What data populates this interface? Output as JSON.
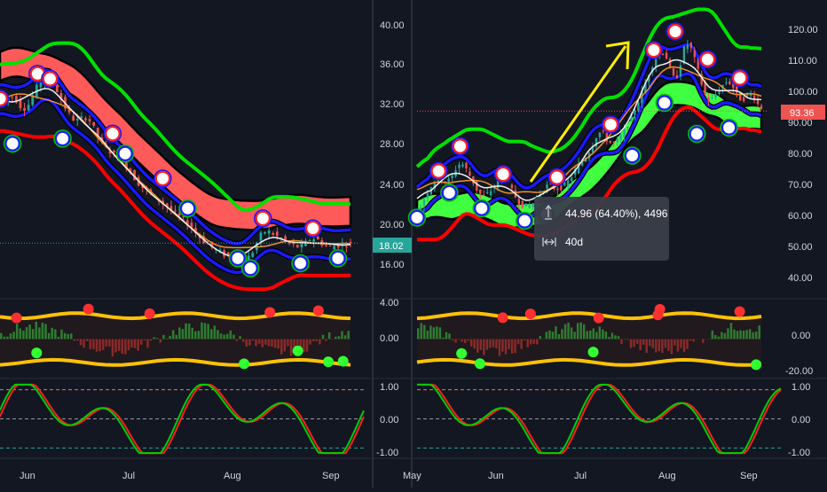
{
  "colors": {
    "background": "#131722",
    "divider": "#2a2e39",
    "axis_text": "#d1d4dc",
    "price_badge_left": "#26a69a",
    "price_badge_right": "#ef5350",
    "band_upper": "#00e000",
    "band_lower": "#ff0000",
    "channel": "#1a1aff",
    "cloud_bear": "#ff5a5a",
    "cloud_bull": "#40ff40",
    "ma_orange": "#f0902a",
    "ma_white": "#f0f0f0",
    "candle_up": "#26a69a",
    "candle_down": "#ef5350",
    "envelope": "#ffc107",
    "osc_green": "#00d000",
    "osc_red": "#ff2020",
    "arrow": "#ffee00"
  },
  "x_axis": {
    "left_labels": [
      "Jun",
      "Jul",
      "Aug",
      "Sep"
    ],
    "right_labels": [
      "May",
      "Jun",
      "Jul",
      "Aug",
      "Sep"
    ]
  },
  "left_chart": {
    "price_axis": [
      "40.00",
      "36.00",
      "32.00",
      "28.00",
      "24.00",
      "20.00",
      "16.00"
    ],
    "last_price": "18.02",
    "histogram_axis": [
      "4.00",
      "0.00"
    ],
    "oscillator_axis": [
      "1.00",
      "0.00",
      "-1.00"
    ]
  },
  "right_chart": {
    "price_axis": [
      "120.00",
      "110.00",
      "100.00",
      "90.00",
      "80.00",
      "70.00",
      "60.00",
      "50.00",
      "40.00"
    ],
    "last_price": "93.36",
    "histogram_axis": [
      "0.00",
      "-20.00"
    ],
    "oscillator_axis": [
      "1.00",
      "0.00",
      "-1.00"
    ],
    "measure_tooltip": {
      "price_change": "44.96 (64.40%), 4496",
      "duration": "40d"
    }
  },
  "chart_data": [
    {
      "type": "candlestick",
      "ylim": [
        13,
        42
      ],
      "x": [
        "May 20",
        "May 24",
        "May 28",
        "Jun 1",
        "Jun 5",
        "Jun 9",
        "Jun 13",
        "Jun 17",
        "Jun 21",
        "Jun 25",
        "Jun 29",
        "Jul 3",
        "Jul 7",
        "Jul 11",
        "Jul 15",
        "Jul 19",
        "Jul 23",
        "Jul 27",
        "Jul 31",
        "Aug 4",
        "Aug 8",
        "Aug 12",
        "Aug 16",
        "Aug 20",
        "Aug 24",
        "Aug 28",
        "Sep 1",
        "Sep 5",
        "Sep 8"
      ],
      "series": [
        {
          "values": [
            32,
            33,
            31,
            34,
            35,
            32,
            30,
            31,
            28,
            27,
            26,
            24,
            23,
            22,
            21,
            20,
            18.5,
            17.5,
            16.8,
            16.2,
            16.5,
            19.5,
            18.8,
            18.0,
            17.5,
            18.8,
            17.6,
            17.8,
            18.02
          ]
        }
      ],
      "pivot_highs": [
        [
          "May 20",
          32.5
        ],
        [
          "Jun 1",
          35
        ],
        [
          "Jun 5",
          34.5
        ],
        [
          "Jun 25",
          29
        ],
        [
          "Jul 11",
          24.5
        ],
        [
          "Aug 12",
          20.5
        ],
        [
          "Aug 28",
          19.5
        ]
      ],
      "pivot_lows": [
        [
          "May 24",
          28
        ],
        [
          "Jun 9",
          28.5
        ],
        [
          "Jun 29",
          27
        ],
        [
          "Jul 19",
          21.5
        ],
        [
          "Aug 4",
          16.5
        ],
        [
          "Aug 8",
          15.5
        ],
        [
          "Aug 24",
          16
        ],
        [
          "Sep 5",
          16.5
        ]
      ]
    },
    {
      "type": "candlestick",
      "ylim": [
        33,
        127
      ],
      "x": [
        "May 1",
        "May 5",
        "May 9",
        "May 13",
        "May 17",
        "May 21",
        "May 25",
        "May 29",
        "Jun 2",
        "Jun 6",
        "Jun 10",
        "Jun 14",
        "Jun 18",
        "Jun 22",
        "Jun 26",
        "Jun 30",
        "Jul 4",
        "Jul 8",
        "Jul 12",
        "Jul 16",
        "Jul 20",
        "Jul 24",
        "Jul 28",
        "Aug 1",
        "Aug 5",
        "Aug 9",
        "Aug 13",
        "Aug 17",
        "Aug 21",
        "Aug 25",
        "Aug 29",
        "Sep 2",
        "Sep 6"
      ],
      "series": [
        {
          "values": [
            60,
            68,
            72,
            70,
            78,
            72,
            65,
            68,
            74,
            66,
            62,
            64,
            70,
            68,
            70,
            76,
            80,
            88,
            82,
            85,
            92,
            100,
            110,
            114,
            100,
            118,
            108,
            95,
            100,
            104,
            96,
            100,
            93.36
          ]
        }
      ],
      "pivot_highs": [
        [
          "May 9",
          74
        ],
        [
          "May 17",
          82
        ],
        [
          "Jun 2",
          73
        ],
        [
          "Jun 22",
          72
        ],
        [
          "Jul 12",
          89
        ],
        [
          "Jul 28",
          113
        ],
        [
          "Aug 5",
          119
        ],
        [
          "Aug 17",
          110
        ],
        [
          "Aug 29",
          104
        ]
      ],
      "pivot_lows": [
        [
          "May 1",
          59
        ],
        [
          "May 13",
          67
        ],
        [
          "May 25",
          62
        ],
        [
          "Jun 10",
          58
        ],
        [
          "Jun 18",
          60
        ],
        [
          "Jul 20",
          79
        ],
        [
          "Aug 1",
          96
        ],
        [
          "Aug 13",
          86
        ],
        [
          "Aug 25",
          88
        ]
      ]
    }
  ]
}
